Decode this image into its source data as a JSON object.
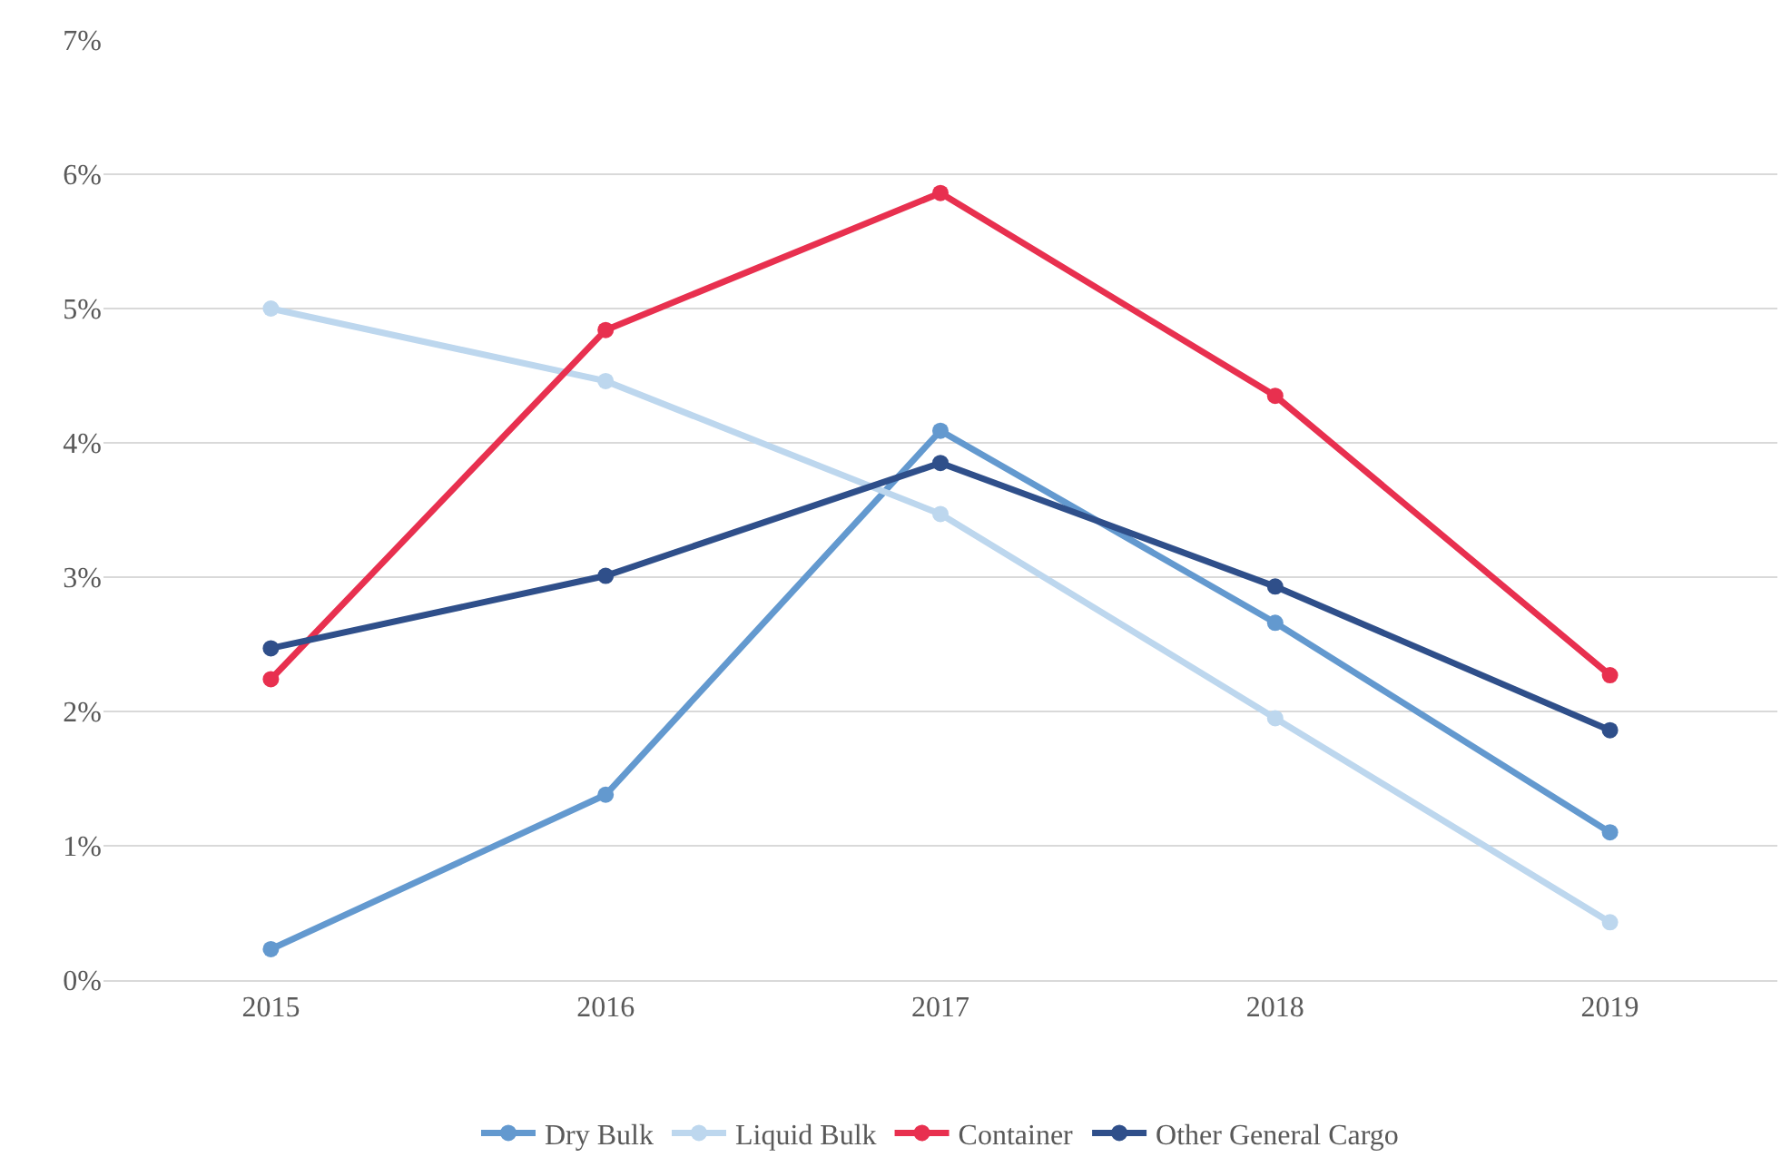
{
  "chart_data": {
    "type": "line",
    "categories": [
      "2015",
      "2016",
      "2017",
      "2018",
      "2019"
    ],
    "series": [
      {
        "name": "Dry Bulk",
        "color": "#6399cf",
        "values": [
          0.23,
          1.38,
          4.09,
          2.66,
          1.1
        ]
      },
      {
        "name": "Liquid Bulk",
        "color": "#bdd7ee",
        "values": [
          5.0,
          4.46,
          3.47,
          1.95,
          0.43
        ]
      },
      {
        "name": "Container",
        "color": "#e8304f",
        "values": [
          2.24,
          4.84,
          5.86,
          4.35,
          2.27
        ]
      },
      {
        "name": "Other General Cargo",
        "color": "#2f4f8a",
        "values": [
          2.47,
          3.01,
          3.85,
          2.93,
          1.86
        ]
      }
    ],
    "ylim": [
      0,
      7
    ],
    "yticks": [
      {
        "value": 0,
        "label": "0%"
      },
      {
        "value": 1,
        "label": "1%"
      },
      {
        "value": 2,
        "label": "2%"
      },
      {
        "value": 3,
        "label": "3%"
      },
      {
        "value": 4,
        "label": "4%"
      },
      {
        "value": 5,
        "label": "5%"
      },
      {
        "value": 6,
        "label": "6%"
      },
      {
        "value": 7,
        "label": "7%"
      }
    ],
    "grid": "y",
    "legend": "bottom",
    "marker": "circle",
    "line_style": "solid"
  }
}
